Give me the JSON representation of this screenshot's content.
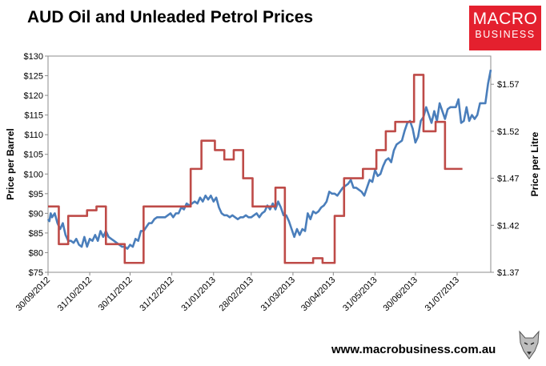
{
  "brand": {
    "logo_line1": "MACRO",
    "logo_line2": "BUSINESS",
    "website": "www.macrobusiness.com.au",
    "logo_color": "#e4202e",
    "wolf_icon": "wolf-head-icon"
  },
  "chart_data": {
    "type": "line",
    "title": "AUD Oil and Unleaded Petrol Prices",
    "ylabel_left": "Price per Barrel",
    "ylabel_right": "Price per Litre",
    "ylim_left": [
      75,
      130
    ],
    "ylim_right": [
      1.37,
      1.6
    ],
    "yticks_left": [
      "$75",
      "$80",
      "$85",
      "$90",
      "$95",
      "$100",
      "$105",
      "$110",
      "$115",
      "$120",
      "$125",
      "$130"
    ],
    "yticks_right": [
      "$1.37",
      "$1.42",
      "$1.47",
      "$1.52",
      "$1.57"
    ],
    "x_start": "2012-09-30",
    "x_end": "2013-08-25",
    "xticks": [
      "30/09/2012",
      "31/10/2012",
      "30/11/2012",
      "31/12/2012",
      "31/01/2013",
      "28/02/2013",
      "31/03/2013",
      "30/04/2013",
      "31/05/2013",
      "30/06/2013",
      "31/07/2013"
    ],
    "xtick_dates": [
      "2012-09-30",
      "2012-10-31",
      "2012-11-30",
      "2012-12-31",
      "2013-01-31",
      "2013-02-28",
      "2013-03-31",
      "2013-04-30",
      "2013-05-31",
      "2013-06-30",
      "2013-07-31"
    ],
    "grid": false,
    "series": [
      {
        "axis": "left",
        "color": "#4a7ebb",
        "points": [
          [
            "2012-09-30",
            88.5
          ],
          [
            "2012-10-01",
            88.0
          ],
          [
            "2012-10-02",
            90.0
          ],
          [
            "2012-10-03",
            89.0
          ],
          [
            "2012-10-05",
            90.0
          ],
          [
            "2012-10-07",
            87.5
          ],
          [
            "2012-10-09",
            86.0
          ],
          [
            "2012-10-11",
            87.5
          ],
          [
            "2012-10-13",
            84.5
          ],
          [
            "2012-10-15",
            83.0
          ],
          [
            "2012-10-17",
            83.0
          ],
          [
            "2012-10-19",
            82.5
          ],
          [
            "2012-10-21",
            83.5
          ],
          [
            "2012-10-23",
            82.0
          ],
          [
            "2012-10-25",
            81.5
          ],
          [
            "2012-10-27",
            84.0
          ],
          [
            "2012-10-29",
            81.5
          ],
          [
            "2012-10-31",
            83.5
          ],
          [
            "2012-11-02",
            83.0
          ],
          [
            "2012-11-04",
            84.5
          ],
          [
            "2012-11-06",
            83.0
          ],
          [
            "2012-11-08",
            85.5
          ],
          [
            "2012-11-10",
            84.0
          ],
          [
            "2012-11-12",
            85.5
          ],
          [
            "2012-11-14",
            84.0
          ],
          [
            "2012-11-16",
            83.5
          ],
          [
            "2012-11-18",
            83.0
          ],
          [
            "2012-11-20",
            82.5
          ],
          [
            "2012-11-22",
            82.0
          ],
          [
            "2012-11-24",
            81.5
          ],
          [
            "2012-11-26",
            81.5
          ],
          [
            "2012-11-28",
            81.0
          ],
          [
            "2012-11-30",
            82.0
          ],
          [
            "2012-12-02",
            81.5
          ],
          [
            "2012-12-04",
            83.5
          ],
          [
            "2012-12-06",
            83.0
          ],
          [
            "2012-12-08",
            85.5
          ],
          [
            "2012-12-10",
            85.5
          ],
          [
            "2012-12-12",
            86.5
          ],
          [
            "2012-12-14",
            87.5
          ],
          [
            "2012-12-16",
            87.5
          ],
          [
            "2012-12-18",
            88.5
          ],
          [
            "2012-12-20",
            89.0
          ],
          [
            "2012-12-22",
            89.0
          ],
          [
            "2012-12-24",
            89.0
          ],
          [
            "2012-12-26",
            89.0
          ],
          [
            "2012-12-28",
            89.5
          ],
          [
            "2012-12-30",
            90.0
          ],
          [
            "2013-01-01",
            89.0
          ],
          [
            "2013-01-03",
            90.0
          ],
          [
            "2013-01-05",
            90.0
          ],
          [
            "2013-01-07",
            91.5
          ],
          [
            "2013-01-09",
            91.0
          ],
          [
            "2013-01-11",
            92.5
          ],
          [
            "2013-01-13",
            92.0
          ],
          [
            "2013-01-15",
            92.5
          ],
          [
            "2013-01-17",
            93.0
          ],
          [
            "2013-01-19",
            92.5
          ],
          [
            "2013-01-21",
            94.0
          ],
          [
            "2013-01-23",
            93.0
          ],
          [
            "2013-01-25",
            94.5
          ],
          [
            "2013-01-27",
            93.5
          ],
          [
            "2013-01-29",
            94.5
          ],
          [
            "2013-01-31",
            93.0
          ],
          [
            "2013-02-02",
            94.0
          ],
          [
            "2013-02-04",
            91.5
          ],
          [
            "2013-02-06",
            90.0
          ],
          [
            "2013-02-08",
            89.5
          ],
          [
            "2013-02-10",
            89.5
          ],
          [
            "2013-02-12",
            89.0
          ],
          [
            "2013-02-14",
            89.5
          ],
          [
            "2013-02-16",
            89.0
          ],
          [
            "2013-02-18",
            88.5
          ],
          [
            "2013-02-20",
            89.0
          ],
          [
            "2013-02-22",
            89.0
          ],
          [
            "2013-02-24",
            89.5
          ],
          [
            "2013-02-26",
            89.0
          ],
          [
            "2013-02-28",
            89.0
          ],
          [
            "2013-03-02",
            89.5
          ],
          [
            "2013-03-04",
            90.0
          ],
          [
            "2013-03-06",
            89.0
          ],
          [
            "2013-03-08",
            90.0
          ],
          [
            "2013-03-10",
            90.5
          ],
          [
            "2013-03-12",
            92.0
          ],
          [
            "2013-03-14",
            91.0
          ],
          [
            "2013-03-16",
            92.5
          ],
          [
            "2013-03-18",
            91.0
          ],
          [
            "2013-03-20",
            93.0
          ],
          [
            "2013-03-22",
            91.5
          ],
          [
            "2013-03-24",
            89.5
          ],
          [
            "2013-03-26",
            89.5
          ],
          [
            "2013-03-28",
            88.0
          ],
          [
            "2013-03-30",
            86.0
          ],
          [
            "2013-04-01",
            84.0
          ],
          [
            "2013-04-03",
            86.0
          ],
          [
            "2013-04-05",
            84.5
          ],
          [
            "2013-04-07",
            86.0
          ],
          [
            "2013-04-09",
            85.5
          ],
          [
            "2013-04-11",
            90.0
          ],
          [
            "2013-04-13",
            88.5
          ],
          [
            "2013-04-15",
            90.5
          ],
          [
            "2013-04-17",
            90.0
          ],
          [
            "2013-04-19",
            90.5
          ],
          [
            "2013-04-21",
            91.5
          ],
          [
            "2013-04-23",
            92.0
          ],
          [
            "2013-04-25",
            93.0
          ],
          [
            "2013-04-27",
            95.5
          ],
          [
            "2013-04-29",
            95.0
          ],
          [
            "2013-05-01",
            95.0
          ],
          [
            "2013-05-03",
            94.5
          ],
          [
            "2013-05-05",
            95.5
          ],
          [
            "2013-05-07",
            96.5
          ],
          [
            "2013-05-09",
            97.0
          ],
          [
            "2013-05-11",
            97.5
          ],
          [
            "2013-05-13",
            98.5
          ],
          [
            "2013-05-15",
            96.5
          ],
          [
            "2013-05-17",
            96.5
          ],
          [
            "2013-05-19",
            96.0
          ],
          [
            "2013-05-21",
            95.5
          ],
          [
            "2013-05-23",
            94.5
          ],
          [
            "2013-05-25",
            96.5
          ],
          [
            "2013-05-27",
            98.5
          ],
          [
            "2013-05-29",
            98.0
          ],
          [
            "2013-05-31",
            101.0
          ],
          [
            "2013-06-02",
            99.5
          ],
          [
            "2013-06-04",
            100.0
          ],
          [
            "2013-06-06",
            102.0
          ],
          [
            "2013-06-08",
            103.5
          ],
          [
            "2013-06-10",
            104.0
          ],
          [
            "2013-06-12",
            103.0
          ],
          [
            "2013-06-14",
            106.0
          ],
          [
            "2013-06-16",
            107.5
          ],
          [
            "2013-06-18",
            108.0
          ],
          [
            "2013-06-20",
            108.5
          ],
          [
            "2013-06-22",
            111.0
          ],
          [
            "2013-06-24",
            113.0
          ],
          [
            "2013-06-26",
            113.5
          ],
          [
            "2013-06-28",
            111.5
          ],
          [
            "2013-06-30",
            108.0
          ],
          [
            "2013-07-02",
            109.5
          ],
          [
            "2013-07-04",
            113.5
          ],
          [
            "2013-07-06",
            114.5
          ],
          [
            "2013-07-08",
            117.0
          ],
          [
            "2013-07-10",
            115.0
          ],
          [
            "2013-07-12",
            113.0
          ],
          [
            "2013-07-14",
            116.0
          ],
          [
            "2013-07-16",
            113.5
          ],
          [
            "2013-07-18",
            118.0
          ],
          [
            "2013-07-20",
            116.0
          ],
          [
            "2013-07-22",
            114.0
          ],
          [
            "2013-07-24",
            116.5
          ],
          [
            "2013-07-26",
            117.0
          ],
          [
            "2013-07-28",
            117.0
          ],
          [
            "2013-07-30",
            117.0
          ],
          [
            "2013-08-01",
            119.0
          ],
          [
            "2013-08-03",
            113.0
          ],
          [
            "2013-08-05",
            113.5
          ],
          [
            "2013-08-07",
            117.0
          ],
          [
            "2013-08-09",
            113.5
          ],
          [
            "2013-08-11",
            115.0
          ],
          [
            "2013-08-13",
            114.0
          ],
          [
            "2013-08-15",
            115.0
          ],
          [
            "2013-08-17",
            118.0
          ],
          [
            "2013-08-19",
            118.0
          ],
          [
            "2013-08-21",
            118.0
          ],
          [
            "2013-08-23",
            123.0
          ],
          [
            "2013-08-25",
            126.5
          ]
        ]
      },
      {
        "axis": "right",
        "color": "#be4b48",
        "step": true,
        "points": [
          [
            "2012-09-30",
            1.44
          ],
          [
            "2012-10-08",
            1.4
          ],
          [
            "2012-10-15",
            1.43
          ],
          [
            "2012-10-29",
            1.436
          ],
          [
            "2012-11-05",
            1.44
          ],
          [
            "2012-11-12",
            1.4
          ],
          [
            "2012-11-26",
            1.38
          ],
          [
            "2012-12-10",
            1.44
          ],
          [
            "2013-01-14",
            1.48
          ],
          [
            "2013-01-22",
            1.51
          ],
          [
            "2013-02-01",
            1.5
          ],
          [
            "2013-02-08",
            1.49
          ],
          [
            "2013-02-15",
            1.5
          ],
          [
            "2013-02-22",
            1.47
          ],
          [
            "2013-03-01",
            1.44
          ],
          [
            "2013-03-18",
            1.46
          ],
          [
            "2013-03-25",
            1.38
          ],
          [
            "2013-04-15",
            1.385
          ],
          [
            "2013-04-22",
            1.38
          ],
          [
            "2013-05-01",
            1.43
          ],
          [
            "2013-05-08",
            1.47
          ],
          [
            "2013-05-22",
            1.48
          ],
          [
            "2013-06-01",
            1.5
          ],
          [
            "2013-06-08",
            1.52
          ],
          [
            "2013-06-15",
            1.53
          ],
          [
            "2013-06-29",
            1.58
          ],
          [
            "2013-07-06",
            1.52
          ],
          [
            "2013-07-15",
            1.53
          ],
          [
            "2013-07-22",
            1.48
          ],
          [
            "2013-07-29",
            1.48
          ]
        ]
      }
    ]
  }
}
